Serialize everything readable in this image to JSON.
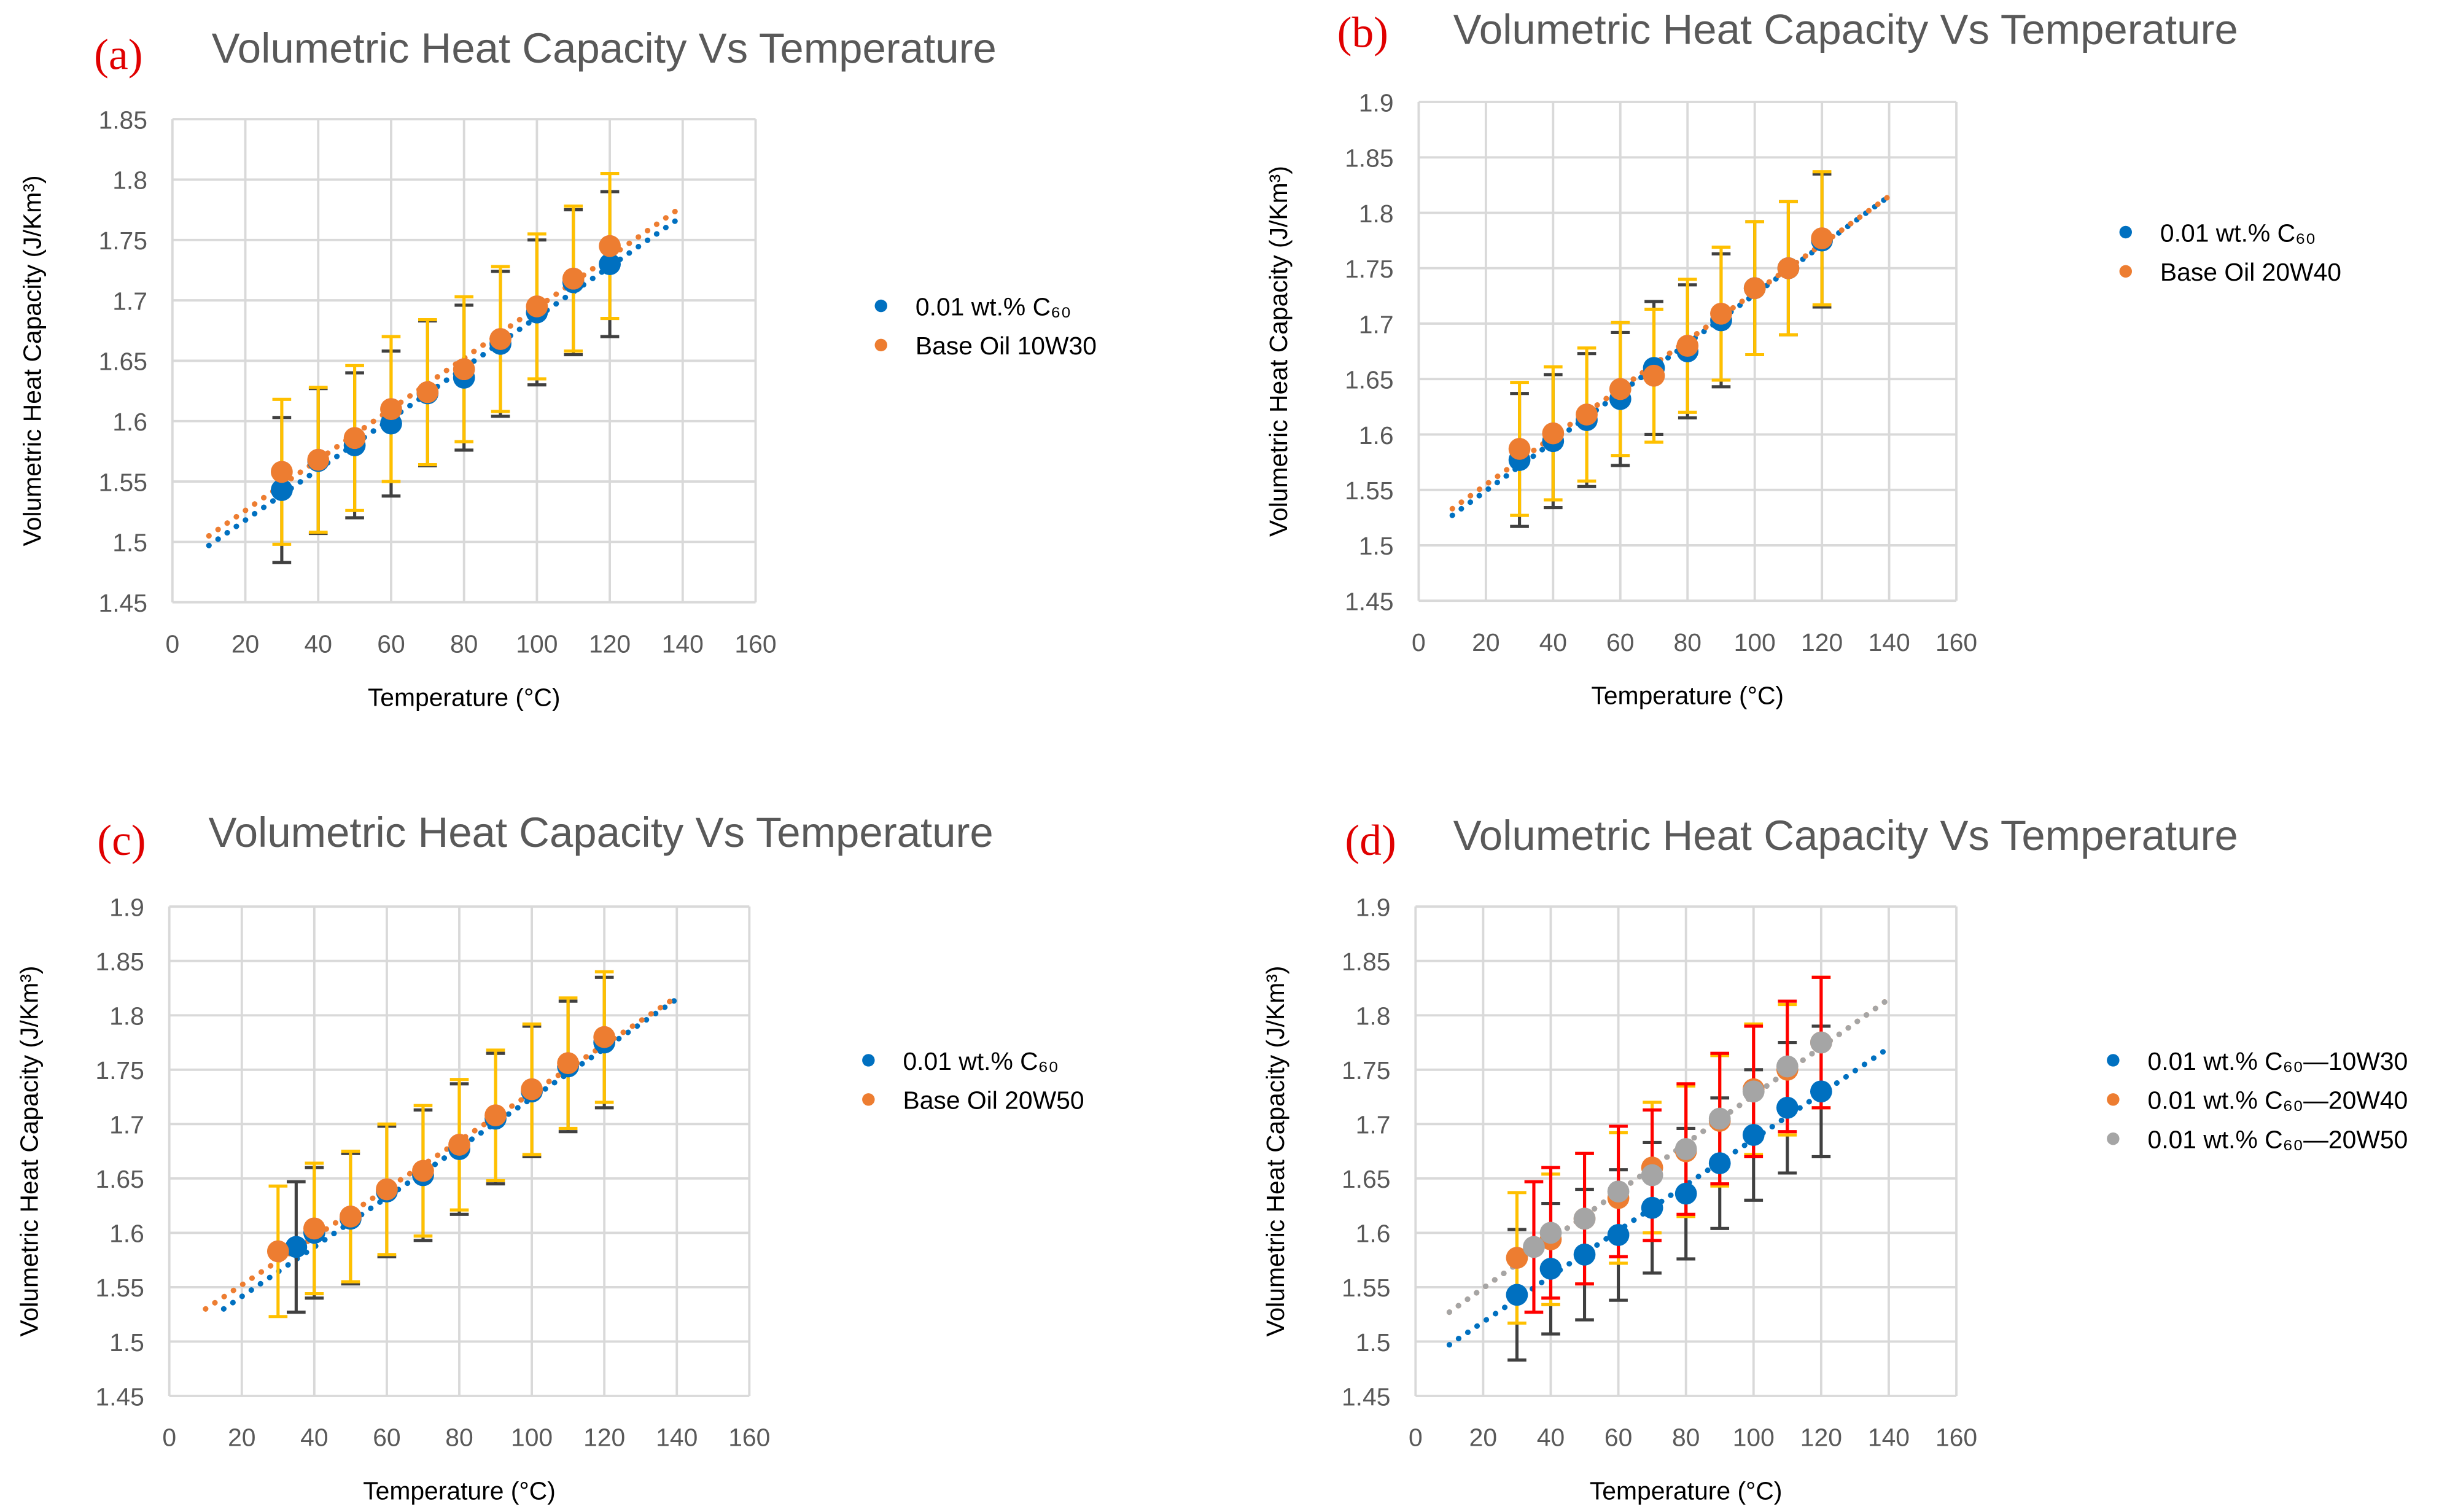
{
  "chart_data": [
    {
      "type": "scatter",
      "panel_label": "(a)",
      "title": "Volumetric Heat Capacity Vs Temperature",
      "xlabel": "Temperature (°C)",
      "ylabel": "Volumetric Heat Capacity (J/Km³)",
      "xlim": [
        0,
        160
      ],
      "ylim": [
        1.45,
        1.85
      ],
      "xticks": [
        "0",
        "20",
        "40",
        "60",
        "80",
        "100",
        "120",
        "140",
        "160"
      ],
      "yticks": [
        "1.45",
        "1.5",
        "1.55",
        "1.6",
        "1.65",
        "1.7",
        "1.75",
        "1.8",
        "1.85"
      ],
      "grid": true,
      "legend_position": "right",
      "series": [
        {
          "name": "0.01 wt.% C₆₀",
          "color": "#0070c0",
          "errcolor": "#404040",
          "yerr": 0.06,
          "x": [
            30,
            40,
            50,
            60,
            70,
            80,
            90,
            100,
            110,
            120
          ],
          "y": [
            1.543,
            1.567,
            1.58,
            1.598,
            1.623,
            1.636,
            1.664,
            1.69,
            1.715,
            1.73
          ],
          "trend": [
            [
              10,
              1.497
            ],
            [
              140,
              1.77
            ]
          ]
        },
        {
          "name": "Base Oil 10W30",
          "color": "#ed7d31",
          "errcolor": "#ffc000",
          "yerr": 0.06,
          "x": [
            30,
            40,
            50,
            60,
            70,
            80,
            90,
            100,
            110,
            120
          ],
          "y": [
            1.558,
            1.568,
            1.586,
            1.61,
            1.624,
            1.643,
            1.668,
            1.695,
            1.718,
            1.745
          ],
          "trend": [
            [
              10,
              1.505
            ],
            [
              140,
              1.778
            ]
          ]
        }
      ]
    },
    {
      "type": "scatter",
      "panel_label": "(b)",
      "title": "Volumetric Heat Capacity Vs Temperature",
      "xlabel": "Temperature (°C)",
      "ylabel": "Volumetric Heat Capacity (J/Km³)",
      "xlim": [
        0,
        160
      ],
      "ylim": [
        1.45,
        1.9
      ],
      "xticks": [
        "0",
        "20",
        "40",
        "60",
        "80",
        "100",
        "120",
        "140",
        "160"
      ],
      "yticks": [
        "1.45",
        "1.5",
        "1.55",
        "1.6",
        "1.65",
        "1.7",
        "1.75",
        "1.8",
        "1.85",
        "1.9"
      ],
      "grid": true,
      "legend_position": "right",
      "series": [
        {
          "name": "0.01 wt.% C₆₀",
          "color": "#0070c0",
          "errcolor": "#404040",
          "yerr": 0.06,
          "x": [
            30,
            40,
            50,
            60,
            70,
            80,
            90,
            100,
            110,
            120
          ],
          "y": [
            1.577,
            1.594,
            1.613,
            1.632,
            1.66,
            1.675,
            1.703,
            1.732,
            1.75,
            1.775
          ],
          "trend": [
            [
              10,
              1.527
            ],
            [
              140,
              1.815
            ]
          ]
        },
        {
          "name": "Base Oil 20W40",
          "color": "#ed7d31",
          "errcolor": "#ffc000",
          "yerr": 0.06,
          "x": [
            30,
            40,
            50,
            60,
            70,
            80,
            90,
            100,
            110,
            120
          ],
          "y": [
            1.587,
            1.601,
            1.618,
            1.641,
            1.653,
            1.68,
            1.709,
            1.732,
            1.75,
            1.777
          ],
          "trend": [
            [
              10,
              1.533
            ],
            [
              140,
              1.815
            ]
          ]
        }
      ]
    },
    {
      "type": "scatter",
      "panel_label": "(c)",
      "title": "Volumetric Heat Capacity Vs Temperature",
      "xlabel": "Temperature (°C)",
      "ylabel": "Volumetric Heat Capacity (J/Km³)",
      "xlim": [
        0,
        160
      ],
      "ylim": [
        1.45,
        1.9
      ],
      "xticks": [
        "0",
        "20",
        "40",
        "60",
        "80",
        "100",
        "120",
        "140",
        "160"
      ],
      "yticks": [
        "1.45",
        "1.5",
        "1.55",
        "1.6",
        "1.65",
        "1.7",
        "1.75",
        "1.8",
        "1.85",
        "1.9"
      ],
      "grid": true,
      "legend_position": "right",
      "series": [
        {
          "name": "0.01 wt.% C₆₀",
          "color": "#0070c0",
          "errcolor": "#404040",
          "yerr": 0.06,
          "x": [
            35,
            40,
            50,
            60,
            70,
            80,
            90,
            100,
            110,
            120
          ],
          "y": [
            1.587,
            1.6,
            1.613,
            1.638,
            1.653,
            1.677,
            1.705,
            1.73,
            1.753,
            1.775
          ],
          "trend": [
            [
              15,
              1.53
            ],
            [
              140,
              1.815
            ]
          ]
        },
        {
          "name": "Base Oil 20W50",
          "color": "#ed7d31",
          "errcolor": "#ffc000",
          "yerr": 0.06,
          "x": [
            30,
            40,
            50,
            60,
            70,
            80,
            90,
            100,
            110,
            120
          ],
          "y": [
            1.583,
            1.604,
            1.615,
            1.64,
            1.657,
            1.681,
            1.708,
            1.732,
            1.756,
            1.78
          ],
          "trend": [
            [
              10,
              1.53
            ],
            [
              140,
              1.817
            ]
          ]
        }
      ]
    },
    {
      "type": "scatter",
      "panel_label": "(d)",
      "title": "Volumetric Heat Capacity Vs Temperature",
      "xlabel": "Temperature (°C)",
      "ylabel": "Volumetric Heat Capacity (J/Km³)",
      "xlim": [
        0,
        160
      ],
      "ylim": [
        1.45,
        1.9
      ],
      "xticks": [
        "0",
        "20",
        "40",
        "60",
        "80",
        "100",
        "120",
        "140",
        "160"
      ],
      "yticks": [
        "1.45",
        "1.5",
        "1.55",
        "1.6",
        "1.65",
        "1.7",
        "1.75",
        "1.8",
        "1.85",
        "1.9"
      ],
      "grid": true,
      "legend_position": "right",
      "series": [
        {
          "name": "0.01 wt.% C₆₀—10W30",
          "color": "#0070c0",
          "errcolor": "#404040",
          "yerr": 0.06,
          "x": [
            30,
            40,
            50,
            60,
            70,
            80,
            90,
            100,
            110,
            120
          ],
          "y": [
            1.543,
            1.567,
            1.58,
            1.598,
            1.623,
            1.636,
            1.664,
            1.69,
            1.715,
            1.73
          ],
          "trend": [
            [
              10,
              1.497
            ],
            [
              140,
              1.77
            ]
          ]
        },
        {
          "name": "0.01 wt.% C₆₀—20W40",
          "color": "#ed7d31",
          "errcolor": "#ffc000",
          "yerr": 0.06,
          "x": [
            30,
            40,
            50,
            60,
            70,
            80,
            90,
            100,
            110,
            120
          ],
          "y": [
            1.577,
            1.594,
            1.613,
            1.632,
            1.66,
            1.675,
            1.703,
            1.732,
            1.75,
            1.775
          ],
          "trend": [
            [
              10,
              1.527
            ],
            [
              140,
              1.815
            ]
          ]
        },
        {
          "name": "0.01 wt.% C₆₀—20W50",
          "color": "#a5a5a5",
          "errcolor": "#ff0000",
          "yerr": 0.06,
          "x": [
            35,
            40,
            50,
            60,
            70,
            80,
            90,
            100,
            110,
            120
          ],
          "y": [
            1.587,
            1.6,
            1.613,
            1.638,
            1.653,
            1.677,
            1.705,
            1.73,
            1.753,
            1.775
          ],
          "trend": [
            [
              10,
              1.527
            ],
            [
              140,
              1.815
            ]
          ]
        }
      ]
    }
  ]
}
